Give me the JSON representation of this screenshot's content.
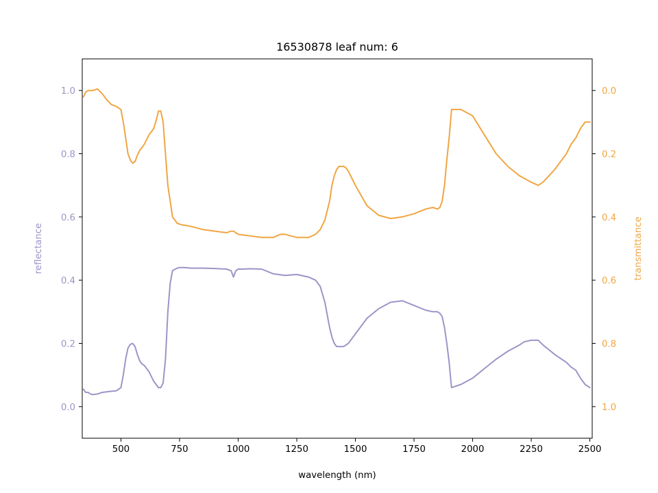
{
  "chart_data": {
    "type": "line",
    "title": "16530878 leaf num: 6",
    "xlabel": "wavelength (nm)",
    "ylabel_left": "reflectance",
    "ylabel_right": "transmittance",
    "xlim": [
      335,
      2510
    ],
    "ylim_left": [
      -0.1,
      1.1
    ],
    "ylim_right": [
      1.1,
      -0.1
    ],
    "x_ticks": [
      500,
      750,
      1000,
      1250,
      1500,
      1750,
      2000,
      2250,
      2500
    ],
    "y_left_ticks": [
      0.0,
      0.2,
      0.4,
      0.6,
      0.8,
      1.0
    ],
    "y_right_ticks": [
      0.0,
      0.2,
      0.4,
      0.6,
      0.8,
      1.0
    ],
    "colors": {
      "reflectance": "#9a95c7",
      "transmittance": "#f0a542"
    },
    "series": [
      {
        "name": "reflectance",
        "axis": "left",
        "x": [
          340,
          350,
          360,
          370,
          380,
          400,
          420,
          450,
          480,
          500,
          510,
          520,
          530,
          540,
          550,
          560,
          570,
          580,
          590,
          600,
          620,
          630,
          640,
          650,
          660,
          670,
          680,
          690,
          700,
          710,
          720,
          740,
          750,
          770,
          800,
          850,
          900,
          950,
          970,
          980,
          990,
          1000,
          1020,
          1050,
          1100,
          1150,
          1200,
          1250,
          1300,
          1330,
          1350,
          1370,
          1390,
          1400,
          1410,
          1420,
          1430,
          1440,
          1450,
          1460,
          1470,
          1500,
          1550,
          1600,
          1650,
          1700,
          1750,
          1800,
          1830,
          1850,
          1860,
          1870,
          1880,
          1890,
          1900,
          1905,
          1910,
          1950,
          2000,
          2050,
          2100,
          2150,
          2200,
          2220,
          2250,
          2280,
          2300,
          2350,
          2380,
          2400,
          2420,
          2440,
          2460,
          2480,
          2500
        ],
        "y": [
          0.055,
          0.045,
          0.045,
          0.04,
          0.038,
          0.04,
          0.045,
          0.048,
          0.05,
          0.06,
          0.1,
          0.15,
          0.185,
          0.197,
          0.2,
          0.19,
          0.165,
          0.145,
          0.135,
          0.13,
          0.11,
          0.095,
          0.08,
          0.07,
          0.06,
          0.06,
          0.075,
          0.15,
          0.3,
          0.39,
          0.43,
          0.438,
          0.44,
          0.44,
          0.438,
          0.438,
          0.437,
          0.435,
          0.43,
          0.41,
          0.43,
          0.435,
          0.435,
          0.436,
          0.435,
          0.42,
          0.415,
          0.418,
          0.41,
          0.4,
          0.38,
          0.33,
          0.25,
          0.22,
          0.2,
          0.19,
          0.19,
          0.19,
          0.19,
          0.195,
          0.2,
          0.23,
          0.28,
          0.31,
          0.33,
          0.335,
          0.32,
          0.305,
          0.3,
          0.3,
          0.295,
          0.285,
          0.25,
          0.2,
          0.14,
          0.1,
          0.06,
          0.07,
          0.09,
          0.12,
          0.15,
          0.175,
          0.195,
          0.205,
          0.21,
          0.21,
          0.195,
          0.165,
          0.15,
          0.14,
          0.125,
          0.115,
          0.09,
          0.07,
          0.06
        ]
      },
      {
        "name": "transmittance",
        "axis": "right",
        "x": [
          340,
          350,
          360,
          370,
          380,
          400,
          420,
          440,
          460,
          480,
          500,
          510,
          520,
          530,
          540,
          550,
          560,
          570,
          580,
          590,
          600,
          620,
          640,
          650,
          660,
          670,
          680,
          690,
          700,
          710,
          720,
          740,
          760,
          800,
          850,
          900,
          950,
          970,
          980,
          1000,
          1050,
          1100,
          1150,
          1180,
          1200,
          1250,
          1300,
          1330,
          1350,
          1370,
          1390,
          1400,
          1410,
          1420,
          1430,
          1440,
          1450,
          1460,
          1470,
          1500,
          1550,
          1600,
          1650,
          1700,
          1750,
          1800,
          1830,
          1850,
          1860,
          1870,
          1880,
          1890,
          1900,
          1910,
          1920,
          1950,
          2000,
          2050,
          2100,
          2150,
          2200,
          2250,
          2280,
          2300,
          2350,
          2380,
          2400,
          2420,
          2440,
          2460,
          2480,
          2500
        ],
        "y": [
          0.02,
          0.005,
          0.0,
          0.0,
          0.0,
          -0.005,
          0.01,
          0.03,
          0.045,
          0.05,
          0.06,
          0.1,
          0.15,
          0.2,
          0.22,
          0.23,
          0.225,
          0.205,
          0.19,
          0.18,
          0.17,
          0.14,
          0.12,
          0.095,
          0.065,
          0.065,
          0.1,
          0.2,
          0.3,
          0.35,
          0.4,
          0.42,
          0.425,
          0.43,
          0.44,
          0.445,
          0.45,
          0.445,
          0.445,
          0.455,
          0.46,
          0.465,
          0.465,
          0.455,
          0.455,
          0.465,
          0.465,
          0.455,
          0.44,
          0.41,
          0.35,
          0.3,
          0.27,
          0.25,
          0.24,
          0.24,
          0.24,
          0.245,
          0.255,
          0.3,
          0.365,
          0.395,
          0.405,
          0.4,
          0.39,
          0.375,
          0.37,
          0.375,
          0.37,
          0.35,
          0.3,
          0.22,
          0.15,
          0.06,
          0.06,
          0.06,
          0.08,
          0.14,
          0.2,
          0.24,
          0.27,
          0.29,
          0.3,
          0.29,
          0.25,
          0.22,
          0.2,
          0.17,
          0.15,
          0.12,
          0.1,
          0.1
        ]
      }
    ]
  }
}
